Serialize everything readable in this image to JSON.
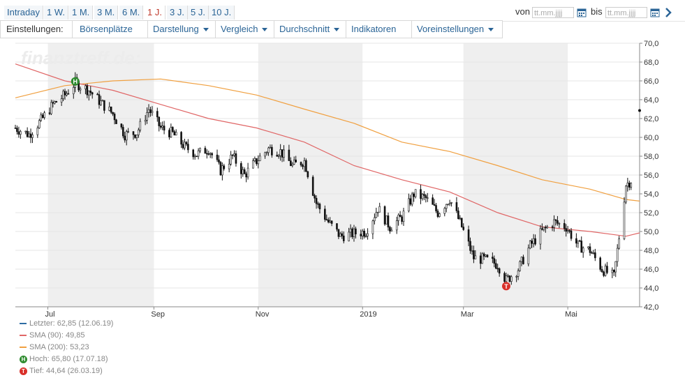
{
  "tabs": [
    {
      "label": "Intraday",
      "active": false
    },
    {
      "label": "1 W.",
      "active": false
    },
    {
      "label": "1 M.",
      "active": false
    },
    {
      "label": "3 M.",
      "active": false
    },
    {
      "label": "6 M.",
      "active": false
    },
    {
      "label": "1 J.",
      "active": true
    },
    {
      "label": "3 J.",
      "active": false
    },
    {
      "label": "5 J.",
      "active": false
    },
    {
      "label": "10 J.",
      "active": false
    }
  ],
  "range": {
    "from_label": "von",
    "to_label": "bis",
    "placeholder": "tt.mm.jjjj"
  },
  "settings": {
    "label": "Einstellungen:",
    "items": [
      "Börsenplätze",
      "Darstellung",
      "Vergleich",
      "Durchschnitt",
      "Indikatoren",
      "Voreinstellungen"
    ]
  },
  "watermark": "finanztreff.de:",
  "colors": {
    "last": "#2e6da4",
    "sma90": "#e06666",
    "sma200": "#f0a040",
    "candle": "#111111",
    "high_badge": "#2e8b2e",
    "low_badge": "#d9302a",
    "shade": "#efefef"
  },
  "legend": [
    {
      "text": "Letzter: 62,85 (12.06.19)",
      "type": "line",
      "color": "#2e6da4"
    },
    {
      "text": "SMA (90): 49,85",
      "type": "line",
      "color": "#e06666"
    },
    {
      "text": "SMA (200): 53,23",
      "type": "line",
      "color": "#f0a040"
    },
    {
      "text": "Hoch: 65,80 (17.07.18)",
      "type": "badge",
      "badge": "H",
      "color": "#2e8b2e"
    },
    {
      "text": "Tief: 44,64 (26.03.19)",
      "type": "badge",
      "badge": "T",
      "color": "#d9302a"
    }
  ],
  "chart_data": {
    "type": "candlestick",
    "x_labels": [
      "Jul",
      "Sep",
      "Nov",
      "2019",
      "Mar",
      "Mai"
    ],
    "y_ticks": [
      "42,0",
      "44,0",
      "46,0",
      "48,0",
      "50,0",
      "52,0",
      "54,0",
      "56,0",
      "58,0",
      "60,0",
      "62,0",
      "64,0",
      "66,0",
      "68,0",
      "70,0"
    ],
    "ylim": [
      42,
      70
    ],
    "close_series": [
      {
        "date": "2018-06-12",
        "close": 61.0
      },
      {
        "date": "2018-06-20",
        "close": 60.3
      },
      {
        "date": "2018-06-27",
        "close": 61.8
      },
      {
        "date": "2018-07-04",
        "close": 63.5
      },
      {
        "date": "2018-07-11",
        "close": 64.5
      },
      {
        "date": "2018-07-17",
        "close": 65.8
      },
      {
        "date": "2018-07-25",
        "close": 65.0
      },
      {
        "date": "2018-08-01",
        "close": 63.7
      },
      {
        "date": "2018-08-08",
        "close": 62.5
      },
      {
        "date": "2018-08-15",
        "close": 60.3
      },
      {
        "date": "2018-08-22",
        "close": 60.5
      },
      {
        "date": "2018-08-29",
        "close": 63.0
      },
      {
        "date": "2018-09-05",
        "close": 61.0
      },
      {
        "date": "2018-09-12",
        "close": 60.4
      },
      {
        "date": "2018-09-19",
        "close": 59.0
      },
      {
        "date": "2018-09-26",
        "close": 58.2
      },
      {
        "date": "2018-10-03",
        "close": 58.8
      },
      {
        "date": "2018-10-10",
        "close": 56.5
      },
      {
        "date": "2018-10-17",
        "close": 58.0
      },
      {
        "date": "2018-10-24",
        "close": 56.0
      },
      {
        "date": "2018-10-31",
        "close": 57.5
      },
      {
        "date": "2018-11-07",
        "close": 58.8
      },
      {
        "date": "2018-11-14",
        "close": 58.5
      },
      {
        "date": "2018-11-21",
        "close": 57.0
      },
      {
        "date": "2018-11-28",
        "close": 57.5
      },
      {
        "date": "2018-12-05",
        "close": 53.0
      },
      {
        "date": "2018-12-12",
        "close": 51.0
      },
      {
        "date": "2018-12-19",
        "close": 49.5
      },
      {
        "date": "2018-12-27",
        "close": 49.8
      },
      {
        "date": "2019-01-03",
        "close": 50.0
      },
      {
        "date": "2019-01-10",
        "close": 52.5
      },
      {
        "date": "2019-01-17",
        "close": 50.5
      },
      {
        "date": "2019-01-24",
        "close": 51.5
      },
      {
        "date": "2019-01-31",
        "close": 54.0
      },
      {
        "date": "2019-02-07",
        "close": 53.5
      },
      {
        "date": "2019-02-14",
        "close": 52.0
      },
      {
        "date": "2019-02-21",
        "close": 53.5
      },
      {
        "date": "2019-02-28",
        "close": 50.5
      },
      {
        "date": "2019-03-07",
        "close": 47.2
      },
      {
        "date": "2019-03-14",
        "close": 47.0
      },
      {
        "date": "2019-03-21",
        "close": 46.5
      },
      {
        "date": "2019-03-26",
        "close": 44.8
      },
      {
        "date": "2019-04-02",
        "close": 46.0
      },
      {
        "date": "2019-04-09",
        "close": 48.5
      },
      {
        "date": "2019-04-16",
        "close": 50.0
      },
      {
        "date": "2019-04-23",
        "close": 51.0
      },
      {
        "date": "2019-04-30",
        "close": 50.5
      },
      {
        "date": "2019-05-07",
        "close": 48.5
      },
      {
        "date": "2019-05-14",
        "close": 48.0
      },
      {
        "date": "2019-05-21",
        "close": 46.0
      },
      {
        "date": "2019-05-28",
        "close": 45.2
      },
      {
        "date": "2019-06-04",
        "close": 55.0
      },
      {
        "date": "2019-06-11",
        "close": 56.0
      },
      {
        "date": "2019-06-12",
        "close": 62.85
      }
    ],
    "sma90": [
      {
        "date": "2018-06-12",
        "value": 67.8
      },
      {
        "date": "2018-07-11",
        "value": 66.0
      },
      {
        "date": "2018-08-08",
        "value": 65.0
      },
      {
        "date": "2018-09-05",
        "value": 63.5
      },
      {
        "date": "2018-10-03",
        "value": 62.0
      },
      {
        "date": "2018-10-31",
        "value": 61.0
      },
      {
        "date": "2018-11-28",
        "value": 59.5
      },
      {
        "date": "2018-12-27",
        "value": 57.0
      },
      {
        "date": "2019-01-24",
        "value": 55.5
      },
      {
        "date": "2019-02-21",
        "value": 54.2
      },
      {
        "date": "2019-03-21",
        "value": 52.0
      },
      {
        "date": "2019-04-16",
        "value": 50.5
      },
      {
        "date": "2019-05-14",
        "value": 50.0
      },
      {
        "date": "2019-06-04",
        "value": 49.5
      },
      {
        "date": "2019-06-12",
        "value": 49.85
      }
    ],
    "sma200": [
      {
        "date": "2018-06-12",
        "value": 64.2
      },
      {
        "date": "2018-07-11",
        "value": 65.5
      },
      {
        "date": "2018-08-08",
        "value": 66.0
      },
      {
        "date": "2018-09-05",
        "value": 66.2
      },
      {
        "date": "2018-10-03",
        "value": 65.5
      },
      {
        "date": "2018-10-31",
        "value": 64.5
      },
      {
        "date": "2018-11-28",
        "value": 63.0
      },
      {
        "date": "2018-12-27",
        "value": 61.5
      },
      {
        "date": "2019-01-24",
        "value": 59.5
      },
      {
        "date": "2019-02-21",
        "value": 58.5
      },
      {
        "date": "2019-03-21",
        "value": 57.0
      },
      {
        "date": "2019-04-16",
        "value": 55.5
      },
      {
        "date": "2019-05-14",
        "value": 54.5
      },
      {
        "date": "2019-06-04",
        "value": 53.4
      },
      {
        "date": "2019-06-12",
        "value": 53.23
      }
    ],
    "markers": [
      {
        "label": "H",
        "date": "2018-07-17",
        "value": 65.8
      },
      {
        "label": "T",
        "date": "2019-03-26",
        "value": 44.64
      }
    ],
    "last_point": {
      "date": "2019-06-12",
      "value": 62.85
    }
  }
}
